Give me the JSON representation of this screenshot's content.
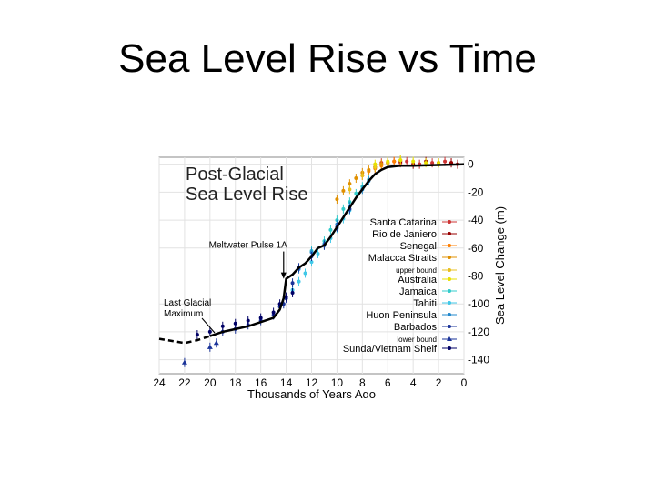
{
  "slide": {
    "title": "Sea Level Rise vs Time"
  },
  "chart_data": {
    "type": "scatter",
    "title_lines": [
      "Post-Glacial",
      "Sea Level Rise"
    ],
    "xlabel": "Thousands of Years Ago",
    "ylabel": "Sea Level Change (m)",
    "xlim": [
      24,
      0
    ],
    "ylim": [
      -150,
      5
    ],
    "x_ticks": [
      24,
      22,
      20,
      18,
      16,
      14,
      12,
      10,
      8,
      6,
      4,
      2,
      0
    ],
    "y_ticks": [
      0,
      -20,
      -40,
      -60,
      -80,
      -100,
      -120,
      -140
    ],
    "grid": true,
    "legend_position": "right",
    "annotations": [
      {
        "text": "Meltwater Pulse 1A",
        "x": 14.2,
        "y": -82
      },
      {
        "text_lines": [
          "Last Glacial",
          "Maximum"
        ],
        "x": 21,
        "y": -120
      }
    ],
    "curve": {
      "x": [
        24,
        22,
        21,
        20,
        19,
        18,
        17,
        16,
        15,
        14.5,
        14.2,
        14,
        13.5,
        13,
        12.5,
        12,
        11.5,
        11,
        10.5,
        10,
        9.5,
        9,
        8.5,
        8,
        7.5,
        7,
        6.5,
        6,
        5,
        4,
        2,
        0
      ],
      "y": [
        -125,
        -128,
        -126,
        -123,
        -120,
        -118,
        -116,
        -113,
        -110,
        -104,
        -96,
        -82,
        -79,
        -74,
        -71,
        -66,
        -60,
        -58,
        -52,
        -45,
        -38,
        -31,
        -24,
        -18,
        -12,
        -7,
        -4,
        -2,
        -1,
        -1,
        -0.5,
        0
      ]
    },
    "series": [
      {
        "name": "Santa Catarina",
        "color": "#cc3333",
        "marker": "dot",
        "x": [
          6.5,
          5.5,
          5,
          4.5,
          3.5,
          2.5,
          1.5,
          1
        ],
        "y": [
          1,
          2,
          1,
          2,
          0,
          1,
          2,
          1
        ]
      },
      {
        "name": "Rio de Janiero",
        "color": "#990000",
        "marker": "dot",
        "x": [
          7,
          6,
          5,
          4,
          3,
          2,
          1,
          0.5
        ],
        "y": [
          -2,
          1,
          2,
          0,
          2,
          1,
          1,
          0
        ]
      },
      {
        "name": "Senegal",
        "color": "#ff7f00",
        "marker": "dot",
        "x": [
          8,
          7.5,
          7,
          6.5,
          6,
          5.5
        ],
        "y": [
          -8,
          -5,
          -3,
          -1,
          1,
          2
        ]
      },
      {
        "name": "Malacca Straits",
        "color": "#e09000",
        "marker": "dot",
        "x": [
          10,
          9.5,
          9,
          8.5,
          8,
          7.5,
          7,
          6.5
        ],
        "y": [
          -25,
          -19,
          -14,
          -10,
          -6,
          -4,
          -2,
          0
        ]
      },
      {
        "name": "upper bound",
        "color": "#e8c020",
        "marker": "dot",
        "small_label": true,
        "x": [
          9,
          8,
          7,
          6,
          5
        ],
        "y": [
          -18,
          -8,
          -2,
          1,
          3
        ]
      },
      {
        "name": "Australia",
        "color": "#e8e000",
        "marker": "dot",
        "x": [
          7,
          6,
          5,
          4,
          3,
          2
        ],
        "y": [
          0,
          2,
          3,
          2,
          1,
          1
        ]
      },
      {
        "name": "Jamaica",
        "color": "#33cccc",
        "marker": "dot",
        "x": [
          12,
          11,
          10.5,
          10,
          9.5,
          9,
          8.5,
          8,
          7.5
        ],
        "y": [
          -62,
          -55,
          -47,
          -40,
          -32,
          -27,
          -21,
          -16,
          -11
        ]
      },
      {
        "name": "Tahiti",
        "color": "#40c8e8",
        "marker": "dot",
        "x": [
          13.5,
          13,
          12.5,
          12,
          11.5,
          11,
          10.5,
          10,
          9.5,
          9
        ],
        "y": [
          -90,
          -84,
          -78,
          -70,
          -64,
          -58,
          -53,
          -46,
          -39,
          -33
        ]
      },
      {
        "name": "Huon Peninsula",
        "color": "#2288cc",
        "marker": "dot",
        "x": [
          13,
          12,
          11,
          10,
          9,
          8,
          7.5
        ],
        "y": [
          -75,
          -63,
          -57,
          -43,
          -30,
          -18,
          -12
        ]
      },
      {
        "name": "Barbados",
        "color": "#1a3399",
        "marker": "dot",
        "x": [
          19,
          18,
          17,
          16,
          15,
          14.5,
          14.2,
          14,
          13.5,
          13,
          12,
          11,
          10,
          9
        ],
        "y": [
          -120,
          -118,
          -115,
          -112,
          -108,
          -102,
          -100,
          -96,
          -85,
          -74,
          -66,
          -58,
          -45,
          -32
        ]
      },
      {
        "name": "lower bound",
        "color": "#1a3399",
        "marker": "triangle",
        "small_label": true,
        "x": [
          22,
          20,
          19.5
        ],
        "y": [
          -142,
          -131,
          -128
        ]
      },
      {
        "name": "Sunda/Vietnam Shelf",
        "color": "#000066",
        "marker": "dot",
        "x": [
          21,
          20,
          19,
          18,
          17,
          16,
          15,
          14.5,
          14,
          13.5
        ],
        "y": [
          -122,
          -120,
          -116,
          -114,
          -112,
          -110,
          -106,
          -100,
          -95,
          -92
        ]
      }
    ]
  }
}
